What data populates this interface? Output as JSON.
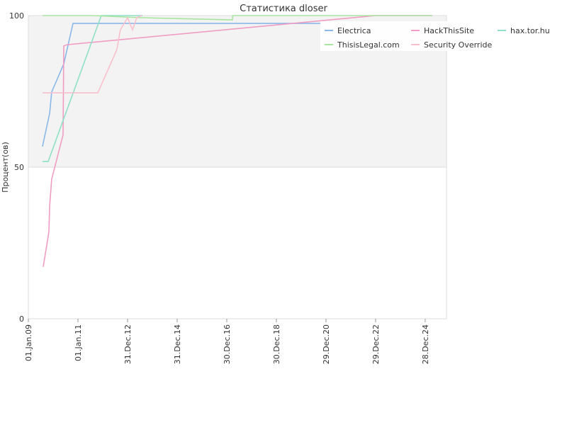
{
  "chart_data": {
    "type": "line",
    "title": "Статистика dloser",
    "y_label": "Процент(ов)",
    "xlim": [
      2009.0,
      2025.86
    ],
    "ylim": [
      0,
      100
    ],
    "yticks": [
      0,
      50,
      100
    ],
    "xticks": [
      {
        "value": 2009.0,
        "label": "01.Jan.09"
      },
      {
        "value": 2011.0,
        "label": "01.Jan.11"
      },
      {
        "value": 2013.0,
        "label": "31.Dec.12"
      },
      {
        "value": 2015.0,
        "label": "31.Dec.14"
      },
      {
        "value": 2017.0,
        "label": "30.Dec.16"
      },
      {
        "value": 2019.0,
        "label": "30.Dec.18"
      },
      {
        "value": 2021.0,
        "label": "29.Dec.20"
      },
      {
        "value": 2023.0,
        "label": "29.Dec.22"
      },
      {
        "value": 2025.0,
        "label": "28.Dec.24"
      }
    ],
    "band_color": "#f3f3f3",
    "series": [
      {
        "name": "Electrica",
        "color": "#8ab8e8",
        "x": [
          2009.57,
          2009.86,
          2009.94,
          2010.43,
          2010.8,
          2020.77
        ],
        "values": [
          56.8,
          67.8,
          74.8,
          84.1,
          97.4,
          97.4
        ]
      },
      {
        "name": "HackThisSite",
        "color": "#f09cc4",
        "x": [
          2009.6,
          2009.83,
          2009.86,
          2009.94,
          2010.4,
          2010.43,
          2010.57,
          2023.0,
          2025.29
        ],
        "values": [
          17.1,
          28.7,
          37.4,
          46.0,
          60.7,
          90.0,
          90.4,
          100,
          100
        ]
      },
      {
        "name": "hax.tor.hu",
        "color": "#8ee0c8",
        "x": [
          2009.57,
          2009.8,
          2011.94,
          2013.6
        ],
        "values": [
          51.9,
          51.9,
          100,
          100
        ]
      },
      {
        "name": "ThisisLegal.com",
        "color": "#a8e6a0",
        "x": [
          2009.57,
          2011.57,
          2013.57,
          2017.23,
          2017.24,
          2025.29
        ],
        "values": [
          100,
          100,
          99.3,
          98.6,
          100,
          100
        ]
      },
      {
        "name": "Security Override",
        "color": "#f8c0cc",
        "x": [
          2009.57,
          2011.8,
          2012.57,
          2012.71,
          2013.0,
          2013.2,
          2013.37,
          2013.57
        ],
        "values": [
          74.5,
          74.5,
          88.8,
          95.3,
          99.3,
          95.3,
          99.3,
          100
        ]
      }
    ]
  }
}
